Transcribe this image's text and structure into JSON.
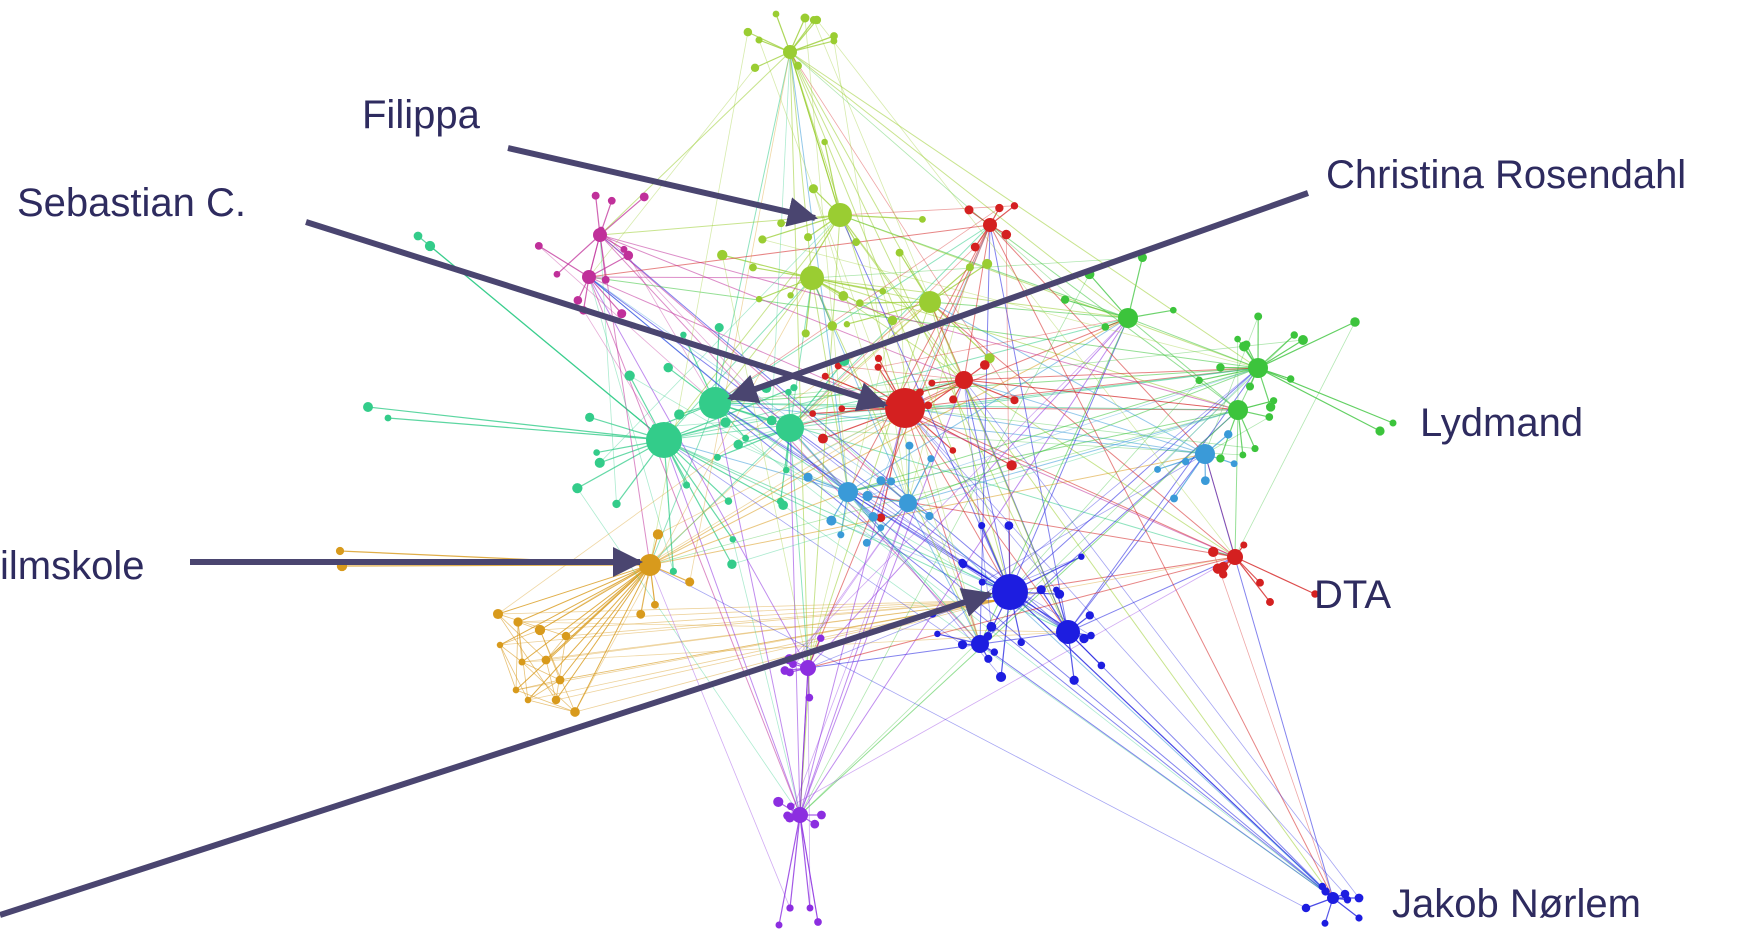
{
  "diagram": {
    "colors": {
      "lime": "#9acd32",
      "green": "#3cc43c",
      "red": "#d42020",
      "teal": "#33cc8a",
      "magenta": "#c0309a",
      "orange": "#d89a1c",
      "blue": "#1d1de0",
      "lightblue": "#3a9ad8",
      "purple": "#8c2ee0",
      "arrow": "#4a4570",
      "label": "#2e2b5f"
    },
    "labels": {
      "filippa": "Filippa",
      "christina": "Christina Rosendahl",
      "sebastian": "Sebastian C.",
      "lydmand": "Lydmand",
      "filmskole": "ilmskole",
      "dta": "DTA",
      "jakob": "Jakob Nørlem"
    }
  }
}
